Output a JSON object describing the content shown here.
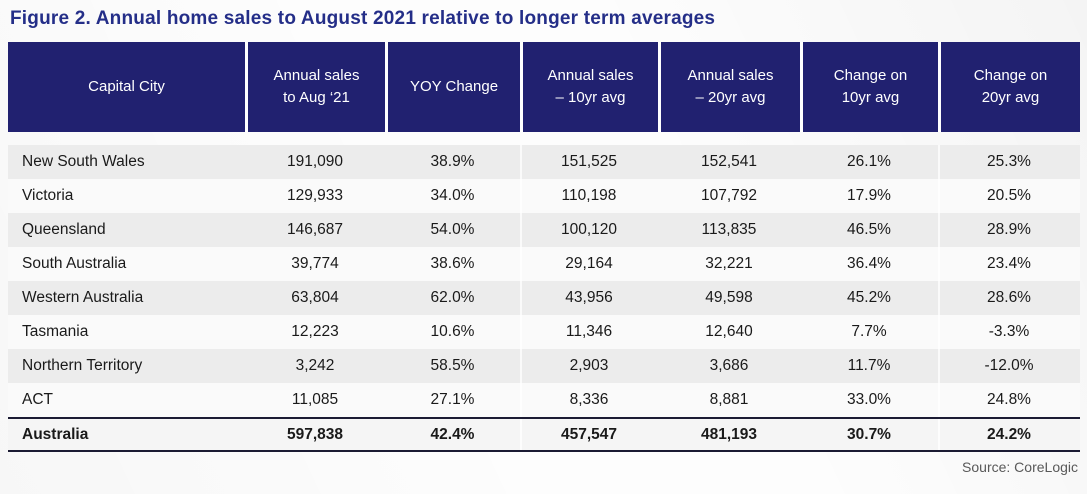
{
  "figure": {
    "title": "Figure 2. Annual home sales to August 2021 relative to longer term averages",
    "source": "Source: CoreLogic"
  },
  "colors": {
    "header_background": "#212170",
    "header_text": "#ffffff",
    "title_text": "#242e88",
    "row_stripe": "#ececec",
    "total_row_border": "#1b1b33",
    "source_text": "#595959"
  },
  "chart_data": {
    "type": "table",
    "title": "Figure 2. Annual home sales to August 2021 relative to longer term averages",
    "source": "Source: CoreLogic",
    "columns": [
      "Capital City",
      "Annual sales\nto Aug ‘21",
      "YOY Change",
      "Annual sales\n– 10yr avg",
      "Annual sales\n– 20yr avg",
      "Change on\n10yr avg",
      "Change on\n20yr avg"
    ],
    "rows": [
      [
        "New South Wales",
        "191,090",
        "38.9%",
        "151,525",
        "152,541",
        "26.1%",
        "25.3%"
      ],
      [
        "Victoria",
        "129,933",
        "34.0%",
        "110,198",
        "107,792",
        "17.9%",
        "20.5%"
      ],
      [
        "Queensland",
        "146,687",
        "54.0%",
        "100,120",
        "113,835",
        "46.5%",
        "28.9%"
      ],
      [
        "South Australia",
        "39,774",
        "38.6%",
        "29,164",
        "32,221",
        "36.4%",
        "23.4%"
      ],
      [
        "Western Australia",
        "63,804",
        "62.0%",
        "43,956",
        "49,598",
        "45.2%",
        "28.6%"
      ],
      [
        "Tasmania",
        "12,223",
        "10.6%",
        "11,346",
        "12,640",
        "7.7%",
        "-3.3%"
      ],
      [
        "Northern Territory",
        "3,242",
        "58.5%",
        "2,903",
        "3,686",
        "11.7%",
        "-12.0%"
      ],
      [
        "ACT",
        "11,085",
        "27.1%",
        "8,336",
        "8,881",
        "33.0%",
        "24.8%"
      ]
    ],
    "total_row": [
      "Australia",
      "597,838",
      "42.4%",
      "457,547",
      "481,193",
      "30.7%",
      "24.2%"
    ]
  }
}
